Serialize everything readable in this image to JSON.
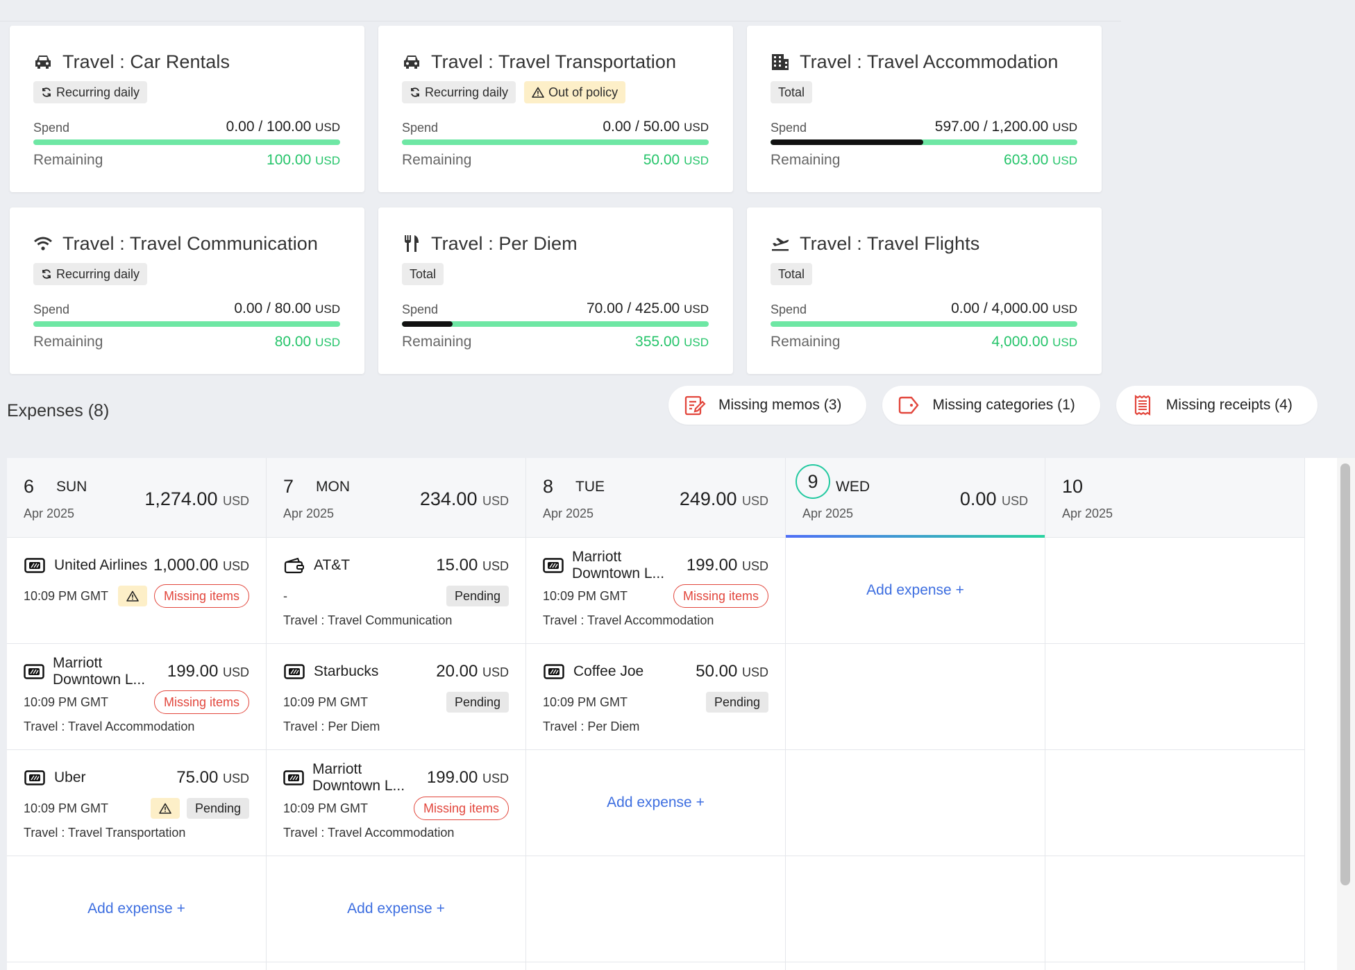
{
  "policies": [
    {
      "icon": "car-icon",
      "title": "Travel : Car Rentals",
      "tags": [
        {
          "label": "Recurring daily",
          "type": "recurring"
        }
      ],
      "spend_label": "Spend",
      "spend": "0.00 / 100.00",
      "currency": "USD",
      "progress": 0.0,
      "remaining_label": "Remaining",
      "remaining": "100.00"
    },
    {
      "icon": "car-icon",
      "title": "Travel : Travel Transportation",
      "tags": [
        {
          "label": "Recurring daily",
          "type": "recurring"
        },
        {
          "label": "Out of policy",
          "type": "warn"
        }
      ],
      "spend_label": "Spend",
      "spend": "0.00 / 50.00",
      "currency": "USD",
      "progress": 0.0,
      "remaining_label": "Remaining",
      "remaining": "50.00"
    },
    {
      "icon": "building-icon",
      "title": "Travel : Travel Accommodation",
      "tags": [
        {
          "label": "Total",
          "type": "total"
        }
      ],
      "spend_label": "Spend",
      "spend": "597.00 / 1,200.00",
      "currency": "USD",
      "progress": 0.4975,
      "remaining_label": "Remaining",
      "remaining": "603.00"
    },
    {
      "icon": "wifi-icon",
      "title": "Travel : Travel Communication",
      "tags": [
        {
          "label": "Recurring daily",
          "type": "recurring"
        }
      ],
      "spend_label": "Spend",
      "spend": "0.00 / 80.00",
      "currency": "USD",
      "progress": 0.0,
      "remaining_label": "Remaining",
      "remaining": "80.00"
    },
    {
      "icon": "fork-knife-icon",
      "title": "Travel : Per Diem",
      "tags": [
        {
          "label": "Total",
          "type": "total"
        }
      ],
      "spend_label": "Spend",
      "spend": "70.00 / 425.00",
      "currency": "USD",
      "progress": 0.1647,
      "remaining_label": "Remaining",
      "remaining": "355.00"
    },
    {
      "icon": "plane-takeoff-icon",
      "title": "Travel : Travel Flights",
      "tags": [
        {
          "label": "Total",
          "type": "total"
        }
      ],
      "spend_label": "Spend",
      "spend": "0.00 / 4,000.00",
      "currency": "USD",
      "progress": 0.0,
      "remaining_label": "Remaining",
      "remaining": "4,000.00"
    }
  ],
  "expenses_title": "Expenses (8)",
  "filters": [
    {
      "icon": "memo-icon",
      "label": "Missing memos (3)",
      "color": "#e2463c"
    },
    {
      "icon": "tag-icon",
      "label": "Missing categories (1)",
      "color": "#e2463c"
    },
    {
      "icon": "receipt-icon",
      "label": "Missing receipts (4)",
      "color": "#e2463c"
    }
  ],
  "add_expense_label": "Add expense +",
  "days": [
    {
      "num": "6",
      "dow": "SUN",
      "month": "Apr 2025",
      "total": "1,274.00",
      "currency": "USD",
      "today": false,
      "slots": [
        {
          "merchant": "United Airlines",
          "icon": "card-icon",
          "amount": "1,000.00",
          "currency": "USD",
          "time": "10:09 PM GMT",
          "warn": true,
          "status": "Missing items",
          "status_type": "missing",
          "category": ""
        },
        {
          "merchant": "Marriott Downtown L...",
          "icon": "card-icon",
          "amount": "199.00",
          "currency": "USD",
          "time": "10:09 PM GMT",
          "warn": false,
          "status": "Missing items",
          "status_type": "missing",
          "category": "Travel : Travel Accommodation"
        },
        {
          "merchant": "Uber",
          "icon": "card-icon",
          "amount": "75.00",
          "currency": "USD",
          "time": "10:09 PM GMT",
          "warn": true,
          "status": "Pending",
          "status_type": "pending",
          "category": "Travel : Travel Transportation"
        },
        {
          "add": true
        }
      ]
    },
    {
      "num": "7",
      "dow": "MON",
      "month": "Apr 2025",
      "total": "234.00",
      "currency": "USD",
      "today": false,
      "slots": [
        {
          "merchant": "AT&T",
          "icon": "wallet-icon",
          "amount": "15.00",
          "currency": "USD",
          "time": "-",
          "warn": false,
          "status": "Pending",
          "status_type": "pending",
          "category": "Travel : Travel Communication"
        },
        {
          "merchant": "Starbucks",
          "icon": "card-icon",
          "amount": "20.00",
          "currency": "USD",
          "time": "10:09 PM GMT",
          "warn": false,
          "status": "Pending",
          "status_type": "pending",
          "category": "Travel : Per Diem"
        },
        {
          "merchant": "Marriott Downtown L...",
          "icon": "card-icon",
          "amount": "199.00",
          "currency": "USD",
          "time": "10:09 PM GMT",
          "warn": false,
          "status": "Missing items",
          "status_type": "missing",
          "category": "Travel : Travel Accommodation"
        },
        {
          "add": true
        }
      ]
    },
    {
      "num": "8",
      "dow": "TUE",
      "month": "Apr 2025",
      "total": "249.00",
      "currency": "USD",
      "today": false,
      "slots": [
        {
          "merchant": "Marriott Downtown L...",
          "icon": "card-icon",
          "amount": "199.00",
          "currency": "USD",
          "time": "10:09 PM GMT",
          "warn": false,
          "status": "Missing items",
          "status_type": "missing",
          "category": "Travel : Travel Accommodation"
        },
        {
          "merchant": "Coffee Joe",
          "icon": "card-icon",
          "amount": "50.00",
          "currency": "USD",
          "time": "10:09 PM GMT",
          "warn": false,
          "status": "Pending",
          "status_type": "pending",
          "category": "Travel : Per Diem"
        },
        {
          "add": true
        },
        {
          "empty": true
        }
      ]
    },
    {
      "num": "9",
      "dow": "WED",
      "month": "Apr 2025",
      "total": "0.00",
      "currency": "USD",
      "today": true,
      "slots": [
        {
          "add": true
        },
        {
          "empty": true
        },
        {
          "empty": true
        },
        {
          "empty": true
        }
      ]
    },
    {
      "num": "10",
      "dow": "",
      "month": "Apr 2025",
      "total": "",
      "currency": "",
      "today": false,
      "slots": [
        {
          "empty": true
        },
        {
          "empty": true
        },
        {
          "empty": true
        },
        {
          "empty": true
        }
      ]
    }
  ]
}
